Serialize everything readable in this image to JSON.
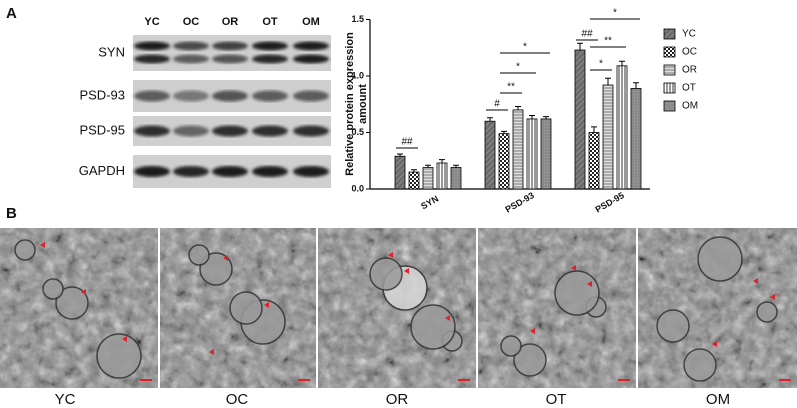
{
  "panels": [
    "A",
    "B"
  ],
  "blot": {
    "lanes": [
      "YC",
      "OC",
      "OR",
      "OT",
      "OM"
    ],
    "rows": [
      "SYN",
      "PSD-93",
      "PSD-95",
      "GAPDH"
    ]
  },
  "chart_data": {
    "type": "bar",
    "ylabel": [
      "Relative protein expression",
      "amount"
    ],
    "categories": [
      "SYN",
      "PSD-93",
      "PSD-95"
    ],
    "series": [
      {
        "name": "YC",
        "color": "#6a6a6a",
        "values": [
          0.29,
          0.6,
          1.23
        ],
        "errors": [
          0.02,
          0.03,
          0.06
        ]
      },
      {
        "name": "OC",
        "color": "#222222",
        "values": [
          0.15,
          0.49,
          0.5
        ],
        "errors": [
          0.02,
          0.02,
          0.05
        ]
      },
      {
        "name": "OR",
        "color": "#8c8c8c",
        "values": [
          0.19,
          0.7,
          0.92
        ],
        "errors": [
          0.02,
          0.03,
          0.06
        ]
      },
      {
        "name": "OT",
        "color": "#333333",
        "values": [
          0.23,
          0.62,
          1.09
        ],
        "errors": [
          0.03,
          0.03,
          0.04
        ]
      },
      {
        "name": "OM",
        "color": "#8a8a8a",
        "values": [
          0.19,
          0.62,
          0.89
        ],
        "errors": [
          0.02,
          0.02,
          0.05
        ]
      }
    ],
    "ylim": [
      0,
      1.5
    ],
    "yticks": [
      {
        "value": 0,
        "label": "0.0"
      },
      0.5,
      {
        "value": 1,
        "label": "1.0"
      },
      1.5
    ],
    "annotations": [
      "##",
      "#",
      "**",
      "*",
      "*",
      "##",
      "*",
      "**",
      "*"
    ],
    "legend": "right"
  },
  "em_images": [
    "YC",
    "OC",
    "OR",
    "OT",
    "OM"
  ]
}
